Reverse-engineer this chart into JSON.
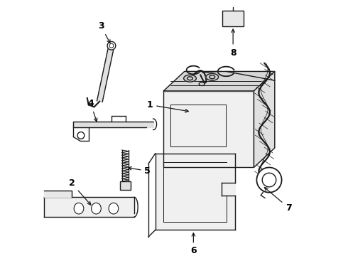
{
  "background_color": "#ffffff",
  "line_color": "#1a1a1a",
  "label_color": "#000000",
  "figsize": [
    4.9,
    3.6
  ],
  "dpi": 100,
  "xlim": [
    0,
    490
  ],
  "ylim": [
    0,
    360
  ]
}
